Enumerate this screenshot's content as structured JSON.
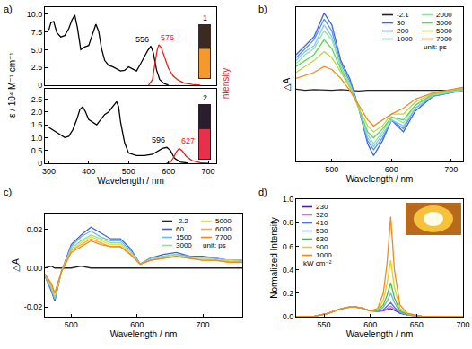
{
  "chart_data": [
    {
      "title": "a)",
      "type": "line",
      "ylabel": "ε / 10⁴ M⁻¹ cm⁻¹",
      "y2label": "Intensity",
      "xlim": [
        290,
        720
      ],
      "ylim": [
        0,
        11
      ],
      "yticks": [
        0,
        2.5,
        {
          "value": 5,
          "label": "5.0"
        },
        7.5,
        {
          "value": 10,
          "label": "10.0"
        }
      ],
      "tick_labels": "y",
      "grid": false,
      "series": [
        {
          "color": "#000000",
          "x": [
            300,
            305,
            312,
            320,
            330,
            340,
            350,
            358,
            365,
            372,
            380,
            390,
            400,
            410,
            418,
            425,
            432,
            440,
            450,
            460,
            470,
            480,
            490,
            500,
            510,
            520,
            530,
            540,
            548,
            556,
            562,
            570,
            578,
            590,
            600
          ],
          "values": [
            7.8,
            8.8,
            9.0,
            7.4,
            6.8,
            7.0,
            8.0,
            9.2,
            9.9,
            8.0,
            5.0,
            5.4,
            5.6,
            7.2,
            8.6,
            7.6,
            5.2,
            3.5,
            2.8,
            2.6,
            2.3,
            2.0,
            2.1,
            2.6,
            2.3,
            2.0,
            3.0,
            4.0,
            4.9,
            5.5,
            4.6,
            2.2,
            0.8,
            0.2,
            0.05
          ]
        },
        {
          "color": "#e8201a",
          "x": [
            550,
            560,
            566,
            572,
            576,
            582,
            590,
            600,
            612,
            625,
            640,
            660,
            680
          ],
          "values": [
            0,
            0.8,
            3.0,
            5.0,
            5.7,
            5.3,
            4.0,
            2.4,
            1.3,
            0.7,
            0.3,
            0.1,
            0
          ]
        }
      ],
      "annotations": [
        {
          "text": "556",
          "x": 556,
          "y": 5.5
        },
        {
          "text": "576",
          "x": 576,
          "y": 5.7,
          "color": "#e8201a"
        },
        {
          "text": "1"
        }
      ]
    },
    {
      "type": "line",
      "xlabel": "Wavelength / nm",
      "xlim": [
        290,
        720
      ],
      "xticks": [
        300,
        400,
        500,
        600,
        700
      ],
      "ylim": [
        0,
        2.9
      ],
      "yticks": [
        0,
        0.5,
        {
          "value": 1,
          "label": "1.0"
        },
        1.5,
        {
          "value": 2,
          "label": "2.0"
        },
        2.5
      ],
      "grid": false,
      "series": [
        {
          "color": "#000000",
          "x": [
            300,
            310,
            320,
            330,
            340,
            350,
            360,
            370,
            378,
            385,
            392,
            400,
            410,
            420,
            430,
            440,
            450,
            460,
            466,
            470,
            475,
            480,
            490,
            500,
            520,
            540,
            560,
            575,
            585,
            596,
            605,
            615,
            630,
            650
          ],
          "values": [
            1.4,
            1.3,
            1.2,
            1.1,
            1.0,
            1.05,
            1.3,
            1.7,
            2.1,
            2.2,
            2.0,
            1.7,
            1.6,
            1.5,
            1.7,
            1.9,
            2.0,
            2.2,
            2.35,
            2.4,
            2.2,
            1.6,
            0.8,
            0.4,
            0.3,
            0.3,
            0.35,
            0.5,
            0.58,
            0.62,
            0.5,
            0.2,
            0.05,
            0
          ]
        },
        {
          "color": "#e8201a",
          "x": [
            595,
            605,
            612,
            620,
            627,
            635,
            645,
            660,
            680,
            700
          ],
          "values": [
            0,
            0.05,
            0.2,
            0.45,
            0.58,
            0.48,
            0.26,
            0.1,
            0.02,
            0
          ]
        }
      ],
      "annotations": [
        {
          "text": "596",
          "x": 596,
          "y": 0.62
        },
        {
          "text": "627",
          "x": 627,
          "y": 0.58,
          "color": "#e8201a"
        },
        {
          "text": "2"
        }
      ]
    },
    {
      "title": "b)",
      "type": "line",
      "xlabel": "Wavelength / nm",
      "ylabel": "△A",
      "xlim": [
        440,
        720
      ],
      "xticks": [
        500,
        600,
        700
      ],
      "ylim": [
        -0.12,
        0.14
      ],
      "tick_labels": "x",
      "grid": false,
      "legend": "upper right",
      "x": [
        440,
        455,
        470,
        487,
        500,
        515,
        530,
        545,
        560,
        570,
        585,
        600,
        620,
        640,
        670,
        720
      ],
      "series": [
        {
          "name": "-2.1",
          "color": "#222222",
          "values": [
            0.002,
            0,
            0.001,
            0,
            0,
            0.001,
            0,
            -0.001,
            0,
            0,
            0.001,
            0,
            0,
            0,
            0,
            0
          ]
        },
        {
          "name": "30",
          "color": "#3f68e0",
          "values": [
            0.06,
            0.075,
            0.09,
            0.13,
            0.11,
            0.05,
            0.02,
            -0.03,
            -0.09,
            -0.11,
            -0.085,
            -0.05,
            -0.07,
            -0.035,
            -0.01,
            0.0
          ]
        },
        {
          "name": "200",
          "color": "#5b8ff0",
          "values": [
            0.055,
            0.07,
            0.085,
            0.12,
            0.1,
            0.045,
            0.015,
            -0.03,
            -0.085,
            -0.1,
            -0.08,
            -0.05,
            -0.065,
            -0.03,
            -0.01,
            0.0
          ]
        },
        {
          "name": "1000",
          "color": "#87c8f5",
          "values": [
            0.05,
            0.065,
            0.075,
            0.11,
            0.09,
            0.04,
            0.01,
            -0.03,
            -0.08,
            -0.095,
            -0.075,
            -0.05,
            -0.06,
            -0.03,
            -0.008,
            0.0
          ]
        },
        {
          "name": "2000",
          "color": "#8ee6a0",
          "values": [
            0.045,
            0.06,
            0.07,
            0.1,
            0.085,
            0.04,
            0.01,
            -0.03,
            -0.075,
            -0.09,
            -0.07,
            -0.045,
            -0.055,
            -0.025,
            -0.008,
            0.002
          ]
        },
        {
          "name": "3000",
          "color": "#5ed65e",
          "values": [
            0.04,
            0.05,
            0.06,
            0.085,
            0.07,
            0.035,
            0.005,
            -0.03,
            -0.07,
            -0.08,
            -0.065,
            -0.045,
            -0.05,
            -0.025,
            -0.006,
            0.003
          ]
        },
        {
          "name": "5000",
          "color": "#b8d845",
          "values": [
            0.03,
            0.04,
            0.05,
            0.065,
            0.055,
            0.03,
            0.005,
            -0.03,
            -0.06,
            -0.07,
            -0.06,
            -0.04,
            -0.04,
            -0.02,
            -0.005,
            0.004
          ]
        },
        {
          "name": "7000",
          "color": "#f08a20",
          "values": [
            0.02,
            0.025,
            0.03,
            0.04,
            0.035,
            0.02,
            0.0,
            -0.025,
            -0.05,
            -0.06,
            -0.05,
            -0.04,
            -0.03,
            -0.015,
            -0.004,
            0.005
          ]
        }
      ],
      "annotations": [
        {
          "text": "unit: ps"
        }
      ]
    },
    {
      "title": "c)",
      "type": "line",
      "xlabel": "Wavelength / nm",
      "ylabel": "△A",
      "xlim": [
        460,
        760
      ],
      "xticks": [
        500,
        600,
        700
      ],
      "ylim": [
        -0.025,
        0.028
      ],
      "yticks": [
        -0.02,
        {
          "value": 0,
          "label": "0.00"
        },
        0.02
      ],
      "grid": false,
      "legend": "upper right",
      "x": [
        460,
        470,
        475,
        485,
        500,
        515,
        530,
        545,
        560,
        575,
        590,
        605,
        620,
        640,
        660,
        680,
        700,
        720,
        740,
        760
      ],
      "series": [
        {
          "name": "-2.2",
          "color": "#222222",
          "values": [
            0,
            0.001,
            0,
            0,
            0,
            0.001,
            0,
            0,
            0,
            0,
            0,
            0,
            0,
            0,
            0,
            0,
            0,
            0,
            0,
            0
          ]
        },
        {
          "name": "60",
          "color": "#3a63d8",
          "values": [
            -0.004,
            -0.012,
            -0.017,
            -0.002,
            0.012,
            0.017,
            0.021,
            0.018,
            0.015,
            0.015,
            0.01,
            0.002,
            0.005,
            0.007,
            0.008,
            0.006,
            0.006,
            0.005,
            0.004,
            0.004
          ]
        },
        {
          "name": "1500",
          "color": "#6fb7ee",
          "values": [
            -0.004,
            -0.011,
            -0.016,
            -0.002,
            0.011,
            0.016,
            0.019,
            0.016,
            0.014,
            0.014,
            0.009,
            0.002,
            0.005,
            0.006,
            0.007,
            0.006,
            0.005,
            0.005,
            0.004,
            0.004
          ]
        },
        {
          "name": "3000",
          "color": "#8fe08f",
          "values": [
            -0.003,
            -0.01,
            -0.015,
            -0.002,
            0.01,
            0.014,
            0.017,
            0.015,
            0.013,
            0.013,
            0.008,
            0.002,
            0.004,
            0.006,
            0.007,
            0.005,
            0.005,
            0.004,
            0.004,
            0.004
          ]
        },
        {
          "name": "5000",
          "color": "#e8e050",
          "values": [
            -0.003,
            -0.009,
            -0.014,
            -0.002,
            0.009,
            0.013,
            0.016,
            0.014,
            0.012,
            0.012,
            0.008,
            0.002,
            0.004,
            0.005,
            0.006,
            0.005,
            0.005,
            0.004,
            0.004,
            0.003
          ]
        },
        {
          "name": "6000",
          "color": "#f0b030",
          "values": [
            -0.003,
            -0.009,
            -0.013,
            -0.002,
            0.009,
            0.012,
            0.015,
            0.013,
            0.011,
            0.011,
            0.007,
            0.002,
            0.004,
            0.005,
            0.006,
            0.005,
            0.004,
            0.004,
            0.003,
            0.003
          ]
        },
        {
          "name": "7700",
          "color": "#f08a20",
          "values": [
            -0.003,
            -0.008,
            -0.013,
            -0.002,
            0.008,
            0.011,
            0.014,
            0.012,
            0.011,
            0.011,
            0.007,
            0.002,
            0.004,
            0.005,
            0.006,
            0.005,
            0.004,
            0.004,
            0.003,
            0.003
          ]
        }
      ],
      "annotations": [
        {
          "text": "unit: ps"
        }
      ]
    },
    {
      "title": "d)",
      "type": "line",
      "xlabel": "Wavelength / nm",
      "ylabel": "Normalized Intensity",
      "xlim": [
        520,
        700
      ],
      "xticks": [
        550,
        600,
        650,
        700
      ],
      "ylim": [
        0,
        1
      ],
      "yticks": [
        {
          "value": 0,
          "label": "0.0"
        },
        0.2,
        0.4,
        0.6,
        0.8,
        {
          "value": 1,
          "label": "1.0"
        }
      ],
      "grid": false,
      "legend": "upper left",
      "x": [
        520,
        540,
        555,
        565,
        575,
        582,
        590,
        600,
        608,
        614,
        618,
        622,
        626,
        632,
        640,
        655,
        670,
        700
      ],
      "series": [
        {
          "name": "230",
          "color": "#5a1a9a",
          "values": [
            0,
            0.005,
            0.03,
            0.06,
            0.08,
            0.085,
            0.075,
            0.05,
            0.045,
            0.05,
            0.06,
            0.07,
            0.055,
            0.03,
            0.015,
            0.005,
            0.002,
            0
          ]
        },
        {
          "name": "320",
          "color": "#d070e0",
          "values": [
            0,
            0.005,
            0.03,
            0.06,
            0.08,
            0.085,
            0.075,
            0.05,
            0.045,
            0.055,
            0.07,
            0.09,
            0.065,
            0.035,
            0.015,
            0.005,
            0.002,
            0
          ]
        },
        {
          "name": "410",
          "color": "#5070f0",
          "values": [
            0,
            0.005,
            0.03,
            0.06,
            0.08,
            0.085,
            0.075,
            0.05,
            0.05,
            0.06,
            0.09,
            0.12,
            0.08,
            0.035,
            0.015,
            0.005,
            0.002,
            0
          ]
        },
        {
          "name": "530",
          "color": "#70b0f0",
          "values": [
            0,
            0.005,
            0.03,
            0.06,
            0.08,
            0.085,
            0.075,
            0.05,
            0.05,
            0.08,
            0.13,
            0.2,
            0.12,
            0.04,
            0.015,
            0.005,
            0.002,
            0
          ]
        },
        {
          "name": "630",
          "color": "#40c040",
          "values": [
            0,
            0.005,
            0.03,
            0.06,
            0.08,
            0.085,
            0.075,
            0.05,
            0.055,
            0.1,
            0.18,
            0.29,
            0.16,
            0.05,
            0.02,
            0.005,
            0.002,
            0
          ]
        },
        {
          "name": "900",
          "color": "#e0d020",
          "values": [
            0,
            0.005,
            0.03,
            0.06,
            0.08,
            0.085,
            0.075,
            0.05,
            0.06,
            0.14,
            0.28,
            0.48,
            0.25,
            0.07,
            0.025,
            0.005,
            0.002,
            0
          ]
        },
        {
          "name": "1000",
          "color": "#f08a20",
          "values": [
            0,
            0.005,
            0.03,
            0.06,
            0.08,
            0.085,
            0.075,
            0.05,
            0.07,
            0.2,
            0.45,
            0.85,
            0.4,
            0.1,
            0.03,
            0.005,
            0.002,
            0
          ]
        }
      ],
      "annotations": [
        {
          "text": "kW cm⁻²"
        }
      ]
    }
  ]
}
